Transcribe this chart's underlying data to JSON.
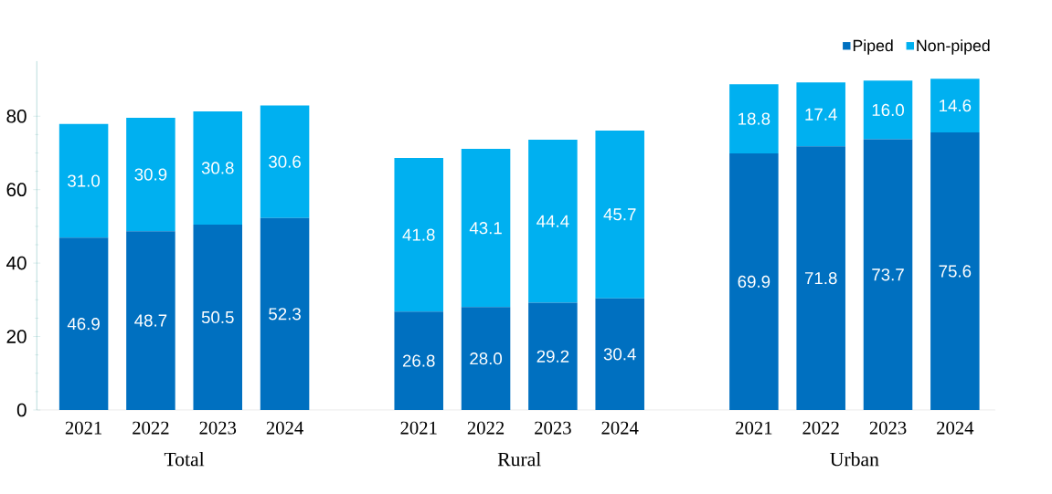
{
  "chart_data": {
    "type": "bar",
    "stacked": true,
    "categories": [
      "2021",
      "2022",
      "2023",
      "2024",
      null,
      "2021",
      "2022",
      "2023",
      "2024",
      null,
      "2021",
      "2022",
      "2023",
      "2024"
    ],
    "series": [
      {
        "name": "Piped",
        "color": "#0070c0",
        "values": [
          46.9,
          48.7,
          50.5,
          52.3,
          null,
          26.8,
          28.0,
          29.2,
          30.4,
          null,
          69.9,
          71.8,
          73.7,
          75.6
        ],
        "value_labels": [
          "46.9",
          "48.7",
          "50.5",
          "52.3",
          null,
          "26.8",
          "28.0",
          "29.2",
          "30.4",
          null,
          "69.9",
          "71.8",
          "73.7",
          "75.6"
        ]
      },
      {
        "name": "Non-piped",
        "color": "#00b0f0",
        "values": [
          31.0,
          30.9,
          30.8,
          30.6,
          null,
          41.8,
          43.1,
          44.4,
          45.7,
          null,
          18.8,
          17.4,
          16.0,
          14.6
        ],
        "value_labels": [
          "31.0",
          "30.9",
          "30.8",
          "30.6",
          null,
          "41.8",
          "43.1",
          "44.4",
          "45.7",
          null,
          "18.8",
          "17.4",
          "16.0",
          "14.6"
        ]
      }
    ],
    "annotations": [
      "Total",
      "Rural",
      "Urban"
    ],
    "ylim": [
      0,
      95
    ],
    "yticks": [
      0,
      20,
      40,
      60,
      80
    ],
    "legend": "top right"
  }
}
